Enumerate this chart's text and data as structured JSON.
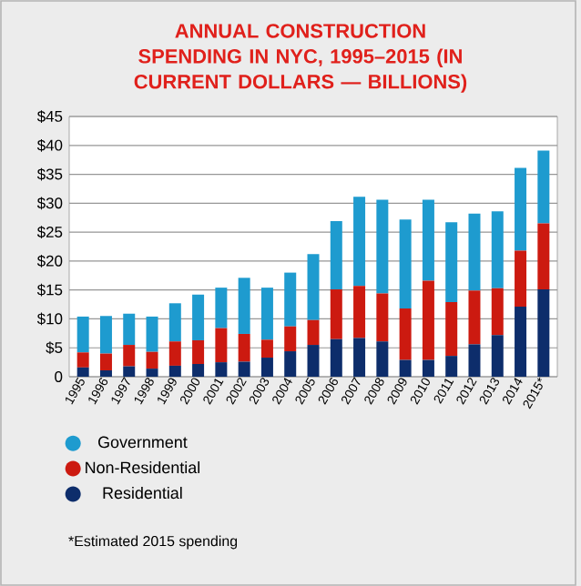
{
  "chart_data": {
    "type": "bar",
    "stacked": true,
    "title": "ANNUAL CONSTRUCTION SPENDING IN NYC, 1995–2015 (IN CURRENT DOLLARS — BILLIONS)",
    "categories": [
      "1995",
      "1996",
      "1997",
      "1998",
      "1999",
      "2000",
      "2001",
      "2002",
      "2003",
      "2004",
      "2005",
      "2006",
      "2007",
      "2008",
      "2009",
      "2010",
      "2011",
      "2012",
      "2013",
      "2014",
      "2015*"
    ],
    "series": [
      {
        "name": "Residential",
        "color": "#0d2d6b",
        "values": [
          1.6,
          1.1,
          1.8,
          1.4,
          1.9,
          2.2,
          2.5,
          2.6,
          3.3,
          4.4,
          5.5,
          6.5,
          6.7,
          6.1,
          2.9,
          2.9,
          3.6,
          5.6,
          7.2,
          12.1,
          15.1
        ]
      },
      {
        "name": "Non-Residential",
        "color": "#cc1a10",
        "values": [
          2.6,
          2.9,
          3.7,
          2.9,
          4.2,
          4.1,
          5.9,
          4.8,
          3.1,
          4.3,
          4.3,
          8.6,
          9.0,
          8.3,
          8.9,
          13.7,
          9.3,
          9.3,
          8.1,
          9.7,
          11.4
        ]
      },
      {
        "name": "Government",
        "color": "#1e9bcf",
        "values": [
          6.2,
          6.5,
          5.4,
          6.1,
          6.6,
          7.9,
          7.0,
          9.7,
          9.0,
          9.3,
          11.4,
          11.8,
          15.4,
          16.2,
          15.4,
          14.0,
          13.8,
          13.3,
          13.3,
          14.3,
          12.6
        ]
      }
    ],
    "ylim": [
      0,
      45
    ],
    "yticks": [
      0,
      {
        "value": 5,
        "label": "$5"
      },
      {
        "value": 10,
        "label": "$10"
      },
      {
        "value": 15,
        "label": "$15"
      },
      {
        "value": 20,
        "label": "$20"
      },
      {
        "value": 25,
        "label": "$25"
      },
      {
        "value": 30,
        "label": "$30"
      },
      {
        "value": 35,
        "label": "$35"
      },
      {
        "value": 40,
        "label": "$40"
      },
      {
        "value": 45,
        "label": "$45"
      }
    ],
    "grid": "y",
    "legend": "bottom left",
    "annotations": [
      "*Estimated 2015 spending"
    ]
  }
}
